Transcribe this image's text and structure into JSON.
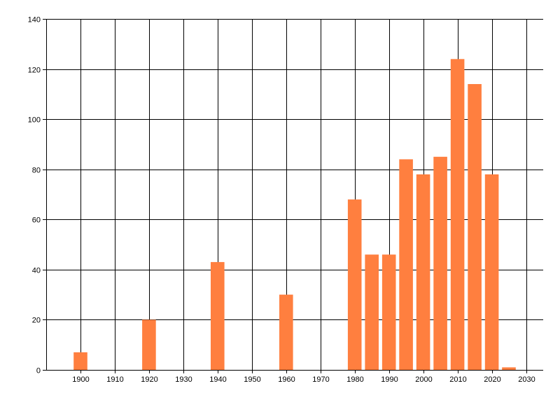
{
  "chart_data": {
    "type": "bar",
    "title": "",
    "xlabel": "",
    "ylabel": "",
    "x": [
      1900,
      1920,
      1940,
      1960,
      1980,
      1985,
      1990,
      1995,
      2000,
      2005,
      2010,
      2015,
      2020,
      2025
    ],
    "values": [
      7,
      20,
      43,
      30,
      68,
      46,
      46,
      84,
      78,
      85,
      124,
      114,
      78,
      1
    ],
    "bar_width": 4,
    "xlim": [
      1890,
      2035
    ],
    "ylim": [
      0,
      140
    ],
    "x_ticks": [
      "1900",
      "1910",
      "1920",
      "1930",
      "1940",
      "1950",
      "1960",
      "1970",
      "1980",
      "1990",
      "2000",
      "2010",
      "2020",
      "2030"
    ],
    "y_ticks": [
      "0",
      "20",
      "40",
      "60",
      "80",
      "100",
      "120",
      "140"
    ],
    "grid": true,
    "legend": "none",
    "bar_color": "#FF7F3F",
    "grid_color": "#000000"
  }
}
